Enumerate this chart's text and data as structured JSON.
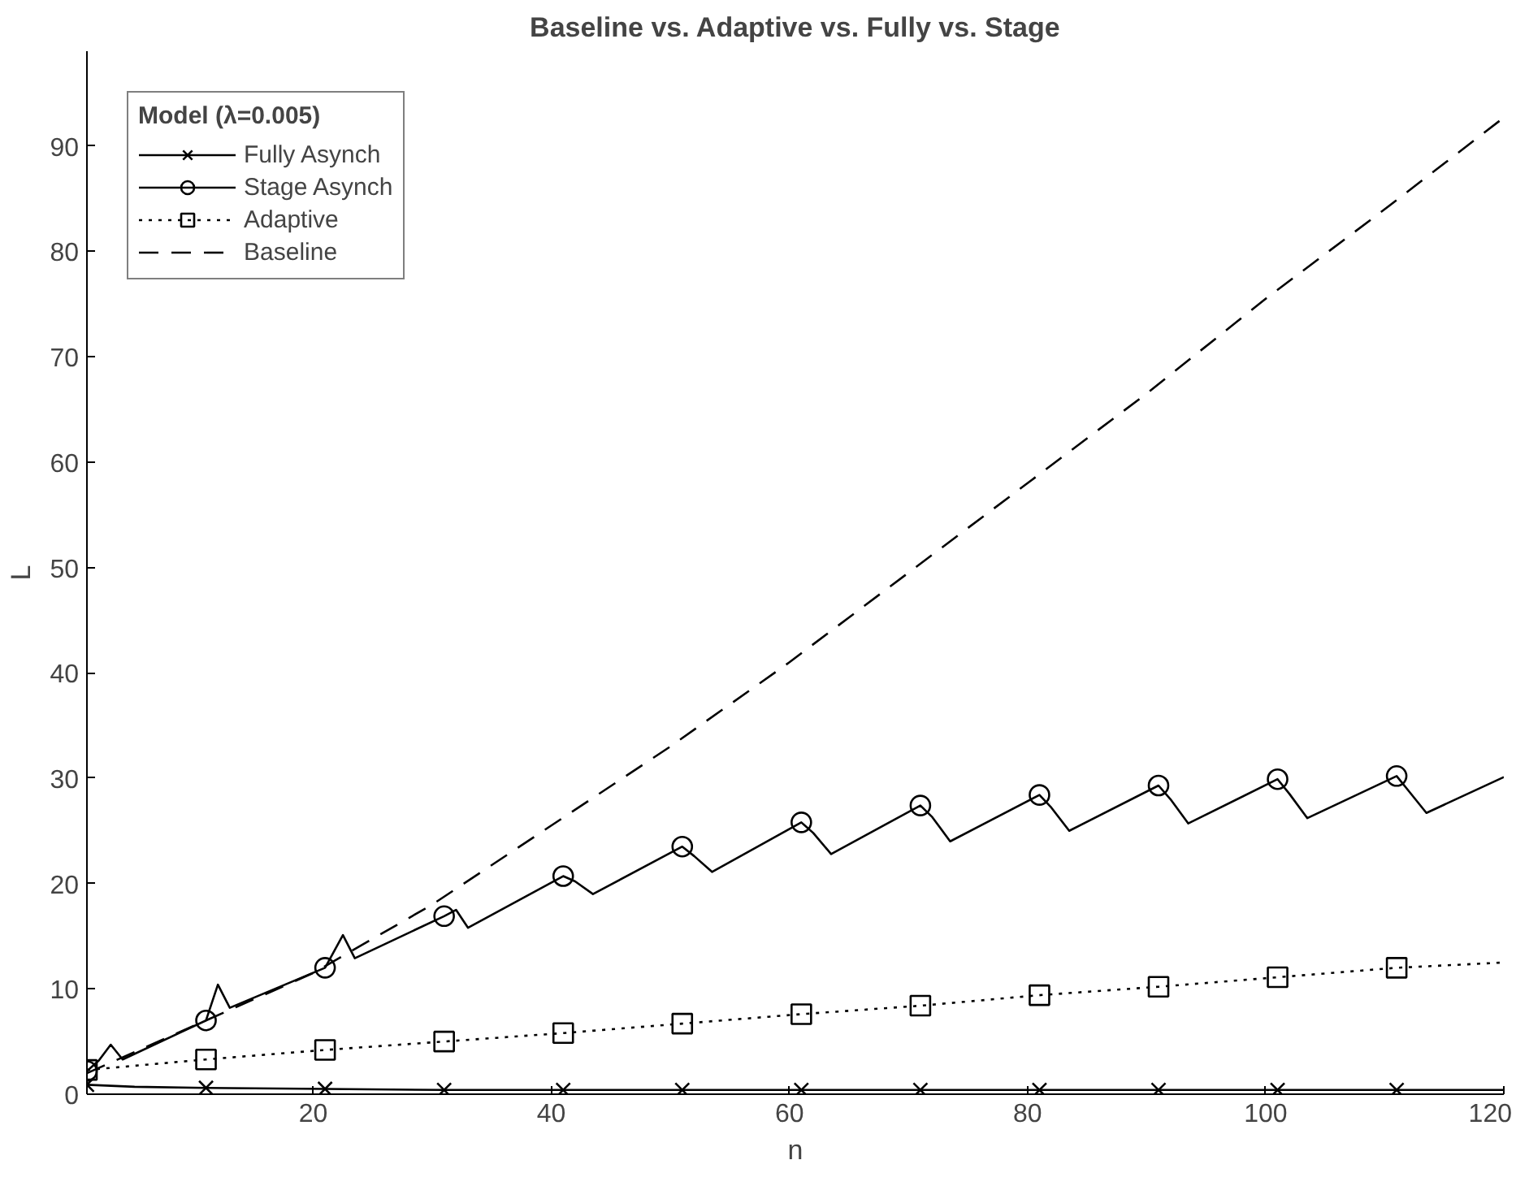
{
  "chart_data": {
    "type": "line",
    "title": "Baseline vs. Adaptive vs. Fully vs. Stage",
    "xlabel": "n",
    "ylabel": "L",
    "legend_title": "Model (λ=0.005)",
    "legend": "top left",
    "xlim": [
      1,
      120
    ],
    "xticks": [
      20,
      40,
      60,
      80,
      100,
      120
    ],
    "ylim": [
      0,
      99
    ],
    "yticks": [
      0,
      10,
      20,
      30,
      40,
      50,
      60,
      70,
      80,
      90
    ],
    "series": [
      {
        "name": "Fully Asynch",
        "line_style": "solid",
        "color": "#000000",
        "x": [
          1,
          5,
          11,
          21,
          31,
          41,
          51,
          61,
          71,
          81,
          91,
          101,
          111,
          120
        ],
        "values": [
          0.9,
          0.7,
          0.6,
          0.5,
          0.4,
          0.4,
          0.4,
          0.4,
          0.4,
          0.4,
          0.4,
          0.4,
          0.4,
          0.4
        ]
      },
      {
        "type": "scatter",
        "marker": "cross",
        "color": "#000000",
        "x": [
          1,
          11,
          21,
          31,
          41,
          51,
          61,
          71,
          81,
          91,
          101,
          111
        ],
        "values": [
          0.9,
          0.6,
          0.5,
          0.4,
          0.4,
          0.4,
          0.4,
          0.4,
          0.4,
          0.4,
          0.4,
          0.4
        ]
      },
      {
        "name": "Stage Asynch",
        "line_style": "solid",
        "color": "#000000",
        "x": [
          1,
          2,
          3,
          4,
          11,
          12,
          13,
          21,
          22.5,
          23.5,
          31,
          32,
          33,
          41,
          42,
          43.5,
          51,
          52,
          53.5,
          61,
          62,
          63.5,
          71,
          72,
          73.5,
          81,
          82,
          83.5,
          91,
          92,
          93.5,
          101,
          102,
          103.5,
          111,
          112,
          113.5,
          120
        ],
        "values": [
          2.2,
          3.2,
          4.7,
          3.3,
          7.0,
          10.4,
          8.2,
          12.0,
          15.1,
          12.9,
          16.9,
          17.5,
          15.8,
          20.7,
          20.2,
          19.0,
          23.5,
          22.6,
          21.1,
          25.8,
          24.8,
          22.8,
          27.4,
          26.3,
          24.0,
          28.4,
          27.2,
          25.0,
          29.3,
          28.0,
          25.7,
          29.9,
          28.5,
          26.2,
          30.2,
          28.8,
          26.7,
          30.1
        ]
      },
      {
        "type": "scatter",
        "marker": "circle",
        "color": "#000000",
        "x": [
          1,
          11,
          21,
          31,
          41,
          51,
          61,
          71,
          81,
          91,
          101,
          111
        ],
        "values": [
          2.2,
          7.0,
          12.0,
          16.9,
          20.7,
          23.5,
          25.8,
          27.4,
          28.4,
          29.3,
          29.9,
          30.2
        ]
      },
      {
        "name": "Adaptive",
        "line_style": "dotted",
        "color": "#000000",
        "x": [
          1,
          11,
          21,
          31,
          41,
          51,
          61,
          71,
          81,
          91,
          101,
          111,
          120
        ],
        "values": [
          2.3,
          3.3,
          4.2,
          5.0,
          5.8,
          6.7,
          7.6,
          8.4,
          9.4,
          10.2,
          11.1,
          12.0,
          12.5
        ]
      },
      {
        "type": "scatter",
        "marker": "square",
        "color": "#000000",
        "x": [
          1,
          11,
          21,
          31,
          41,
          51,
          61,
          71,
          81,
          91,
          101,
          111
        ],
        "values": [
          2.3,
          3.3,
          4.2,
          5.0,
          5.8,
          6.7,
          7.6,
          8.4,
          9.4,
          10.2,
          11.1,
          12.0
        ]
      },
      {
        "name": "Baseline",
        "line_style": "dashed",
        "color": "#000000",
        "x": [
          1,
          10,
          20,
          30,
          40,
          50,
          60,
          70,
          80,
          90,
          100,
          110,
          120
        ],
        "values": [
          2.0,
          6.5,
          11.5,
          18.0,
          25.5,
          33.0,
          41.0,
          49.5,
          58.0,
          66.5,
          75.5,
          84.0,
          92.7
        ]
      }
    ]
  }
}
